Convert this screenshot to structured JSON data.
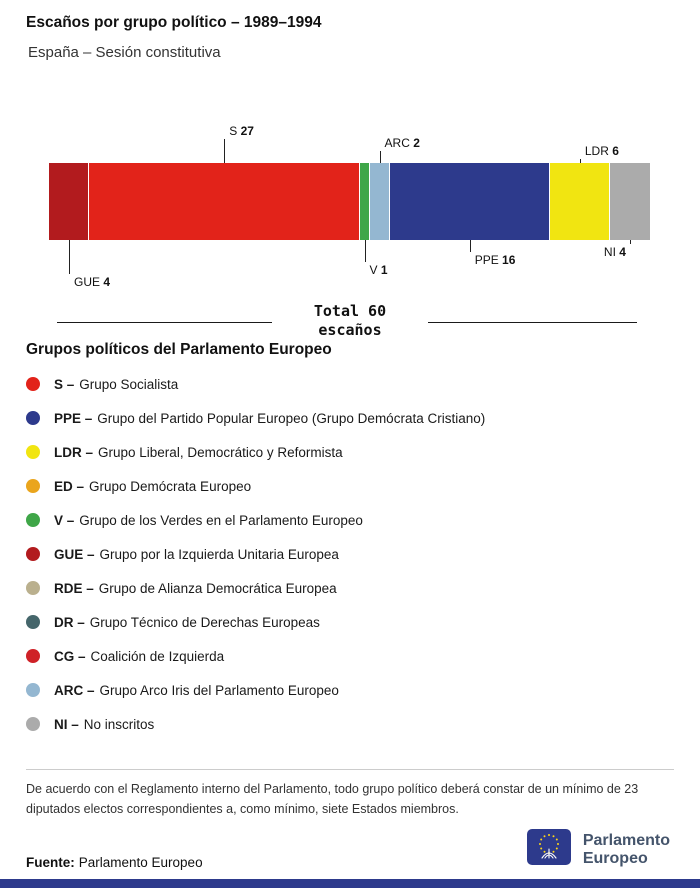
{
  "header": {
    "title": "Escaños por grupo político – 1989–1994",
    "subtitle": "España – Sesión constitutiva"
  },
  "chart_data": {
    "type": "bar",
    "stacked": true,
    "orientation": "horizontal",
    "total": 60,
    "total_label_line1": "Total 60",
    "total_label_line2": "escaños",
    "segments": [
      {
        "code": "GUE",
        "value": 4,
        "color": "#b21b1e",
        "label_side": "below",
        "leader": 34
      },
      {
        "code": "S",
        "value": 27,
        "color": "#e2231a",
        "label_side": "above",
        "leader": 24
      },
      {
        "code": "V",
        "value": 1,
        "color": "#3fa648",
        "label_side": "below",
        "leader": 22
      },
      {
        "code": "ARC",
        "value": 2,
        "color": "#94b7d1",
        "label_side": "above",
        "leader": 12
      },
      {
        "code": "PPE",
        "value": 16,
        "color": "#2d3a8c",
        "label_side": "below",
        "leader": 12
      },
      {
        "code": "LDR",
        "value": 6,
        "color": "#f1e511",
        "label_side": "above",
        "leader": 4
      },
      {
        "code": "NI",
        "value": 4,
        "color": "#ababab",
        "label_side": "below",
        "leader": 4,
        "text_side": "left"
      }
    ]
  },
  "legend": {
    "heading": "Grupos políticos del Parlamento Europeo",
    "separator": "–",
    "items": [
      {
        "code": "S",
        "name": "Grupo Socialista",
        "color": "#e2231a"
      },
      {
        "code": "PPE",
        "name": "Grupo del Partido Popular Europeo (Grupo Demócrata Cristiano)",
        "color": "#2d3a8c"
      },
      {
        "code": "LDR",
        "name": "Grupo Liberal, Democrático y Reformista",
        "color": "#f1e511"
      },
      {
        "code": "ED",
        "name": "Grupo Demócrata Europeo",
        "color": "#eaa51d"
      },
      {
        "code": "V",
        "name": "Grupo de los Verdes en el Parlamento Europeo",
        "color": "#3fa648"
      },
      {
        "code": "GUE",
        "name": "Grupo por la Izquierda Unitaria Europea",
        "color": "#b21b1e"
      },
      {
        "code": "RDE",
        "name": "Grupo de Alianza Democrática Europea",
        "color": "#bab08e"
      },
      {
        "code": "DR",
        "name": "Grupo Técnico de Derechas Europeas",
        "color": "#45666b"
      },
      {
        "code": "CG",
        "name": "Coalición de Izquierda",
        "color": "#cf2127"
      },
      {
        "code": "ARC",
        "name": "Grupo Arco Iris del Parlamento Europeo",
        "color": "#94b7d1"
      },
      {
        "code": "NI",
        "name": "No inscritos",
        "color": "#ababab"
      }
    ]
  },
  "footnote": "De acuerdo con el Reglamento interno del Parlamento, todo grupo político deberá constar de un mínimo de 23 diputados electos correspondientes a, como mínimo, siete Estados miembros.",
  "source": {
    "label": "Fuente:",
    "value": "Parlamento Europeo"
  },
  "logo": {
    "line1": "Parlamento",
    "line2": "Europeo"
  }
}
